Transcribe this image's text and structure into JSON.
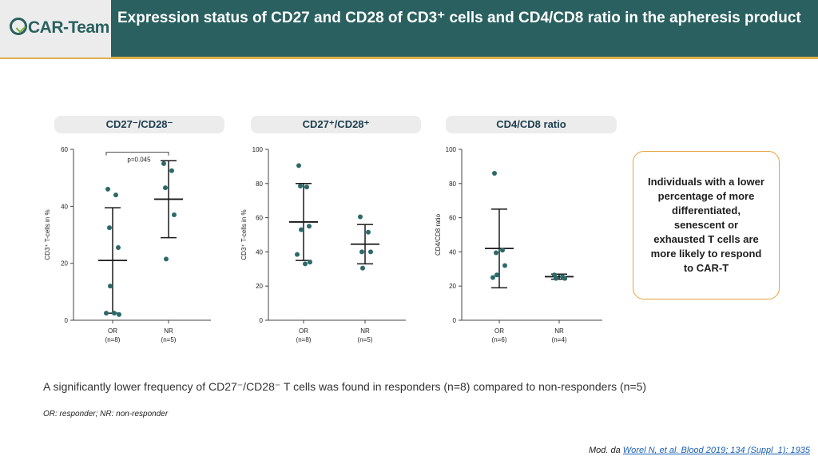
{
  "header": {
    "logo_text": "CAR-Team",
    "title": "Expression status of CD27 and CD28 of CD3⁺ cells and CD4/CD8 ratio in the apheresis product"
  },
  "colors": {
    "header_bg": "#2a6060",
    "accent": "#e0b24a",
    "dots": "#2c6a6a"
  },
  "chart_data": [
    {
      "type": "scatter",
      "title": "CD27⁻/CD28⁻",
      "ylabel": "CD3⁺ T-cells in %",
      "categories": [
        "OR\n(n=8)",
        "NR\n(n=5)"
      ],
      "ylim": [
        0,
        60
      ],
      "yticks": [
        0,
        20,
        40,
        60
      ],
      "series": [
        {
          "category": "OR\n(n=8)",
          "values": [
            46,
            44,
            32.5,
            25.5,
            12,
            2.5,
            2.5,
            2
          ],
          "mean": 21,
          "err_low": 2.5,
          "err_high": 39.5
        },
        {
          "category": "NR\n(n=5)",
          "values": [
            55,
            52.5,
            46.5,
            37,
            21.5
          ],
          "mean": 42.5,
          "err_low": 29,
          "err_high": 56
        }
      ],
      "annotation": "p=0.045",
      "grid": false
    },
    {
      "type": "scatter",
      "title": "CD27⁺/CD28⁺",
      "ylabel": "CD3⁺ T-cells in %",
      "categories": [
        "OR\n(n=8)",
        "NR\n(n=5)"
      ],
      "ylim": [
        0,
        100
      ],
      "yticks": [
        0,
        20,
        40,
        60,
        80,
        100
      ],
      "series": [
        {
          "category": "OR\n(n=8)",
          "values": [
            90.5,
            78,
            78.5,
            55,
            53,
            38.5,
            33,
            34
          ],
          "mean": 57.5,
          "err_low": 35,
          "err_high": 80
        },
        {
          "category": "NR\n(n=5)",
          "values": [
            60.5,
            51.5,
            40,
            40,
            30.5
          ],
          "mean": 44.5,
          "err_low": 33,
          "err_high": 56
        }
      ],
      "grid": false
    },
    {
      "type": "scatter",
      "title": "CD4/CD8 ratio",
      "ylabel": "CD4/CD8 ratio",
      "categories": [
        "OR\n(n=6)",
        "NR\n(n=4)"
      ],
      "ylim": [
        0,
        100
      ],
      "yticks": [
        0,
        20,
        40,
        60,
        80,
        100
      ],
      "series": [
        {
          "category": "OR\n(n=6)",
          "values": [
            86,
            41,
            39.5,
            32,
            26.5,
            25
          ],
          "mean": 42,
          "err_low": 19,
          "err_high": 65
        },
        {
          "category": "NR\n(n=4)",
          "values": [
            26.5,
            25.5,
            24.5,
            24.5
          ],
          "mean": 25.5,
          "err_low": 24,
          "err_high": 27
        }
      ],
      "grid": false
    }
  ],
  "callout_text": "Individuals with a lower percentage of more differentiated, senescent or exhausted T cells are more likely to respond to CAR-T",
  "finding_text": "A significantly lower frequency of CD27⁻/CD28⁻ T cells was found in responders (n=8) compared to non-responders (n=5)",
  "footnote": "OR: responder; NR: non-responder",
  "source": {
    "prefix": "Mod. da",
    "reference": "Worel N, et al. Blood 2019; 134 (Suppl_1): 1935"
  }
}
